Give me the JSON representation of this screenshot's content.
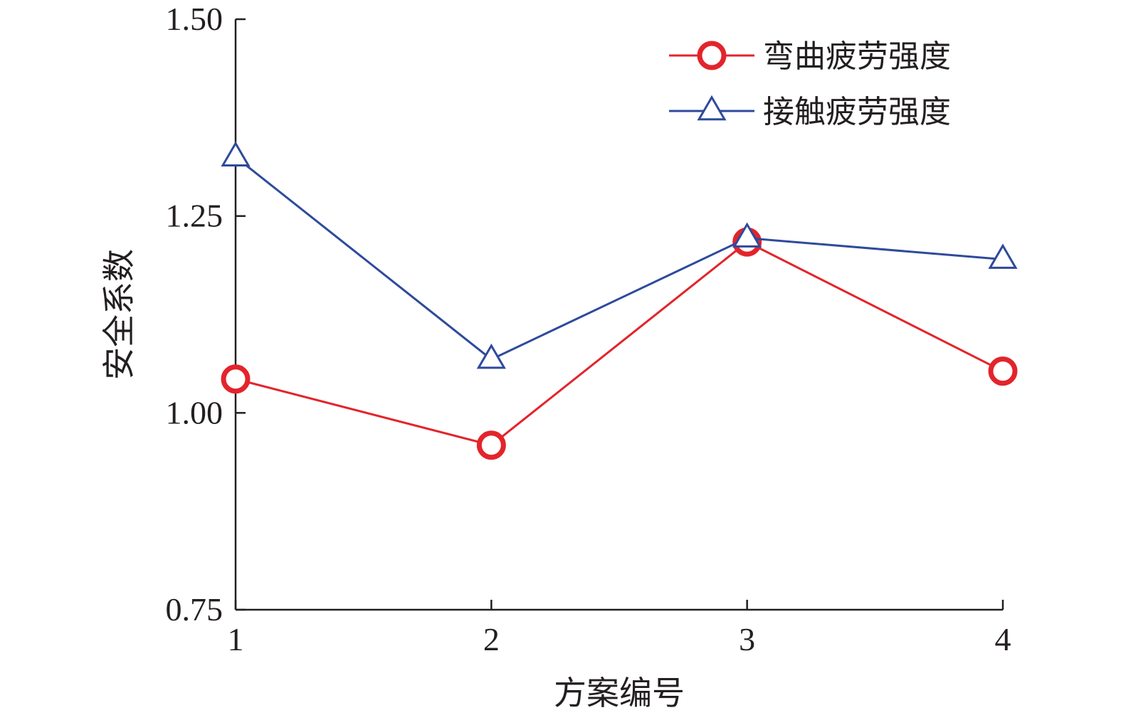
{
  "chart_data": {
    "type": "line",
    "title": "",
    "xlabel": "方案编号",
    "ylabel": "安全系数",
    "categories": [
      "1",
      "2",
      "3",
      "4"
    ],
    "x_ticks": [
      "1",
      "2",
      "3",
      "4"
    ],
    "y_ticks": [
      "0.75",
      "1.00",
      "1.25",
      "1.50"
    ],
    "ylim": [
      0.75,
      1.5
    ],
    "grid": false,
    "legend_position": "top-right",
    "series": [
      {
        "name": "弯曲疲劳强度",
        "marker": "circle",
        "color": "#e3242b",
        "values": [
          1.043,
          0.959,
          1.217,
          1.053
        ]
      },
      {
        "name": "接触疲劳强度",
        "marker": "triangle",
        "color": "#2e4a9b",
        "values": [
          1.325,
          1.068,
          1.222,
          1.195
        ]
      }
    ]
  }
}
